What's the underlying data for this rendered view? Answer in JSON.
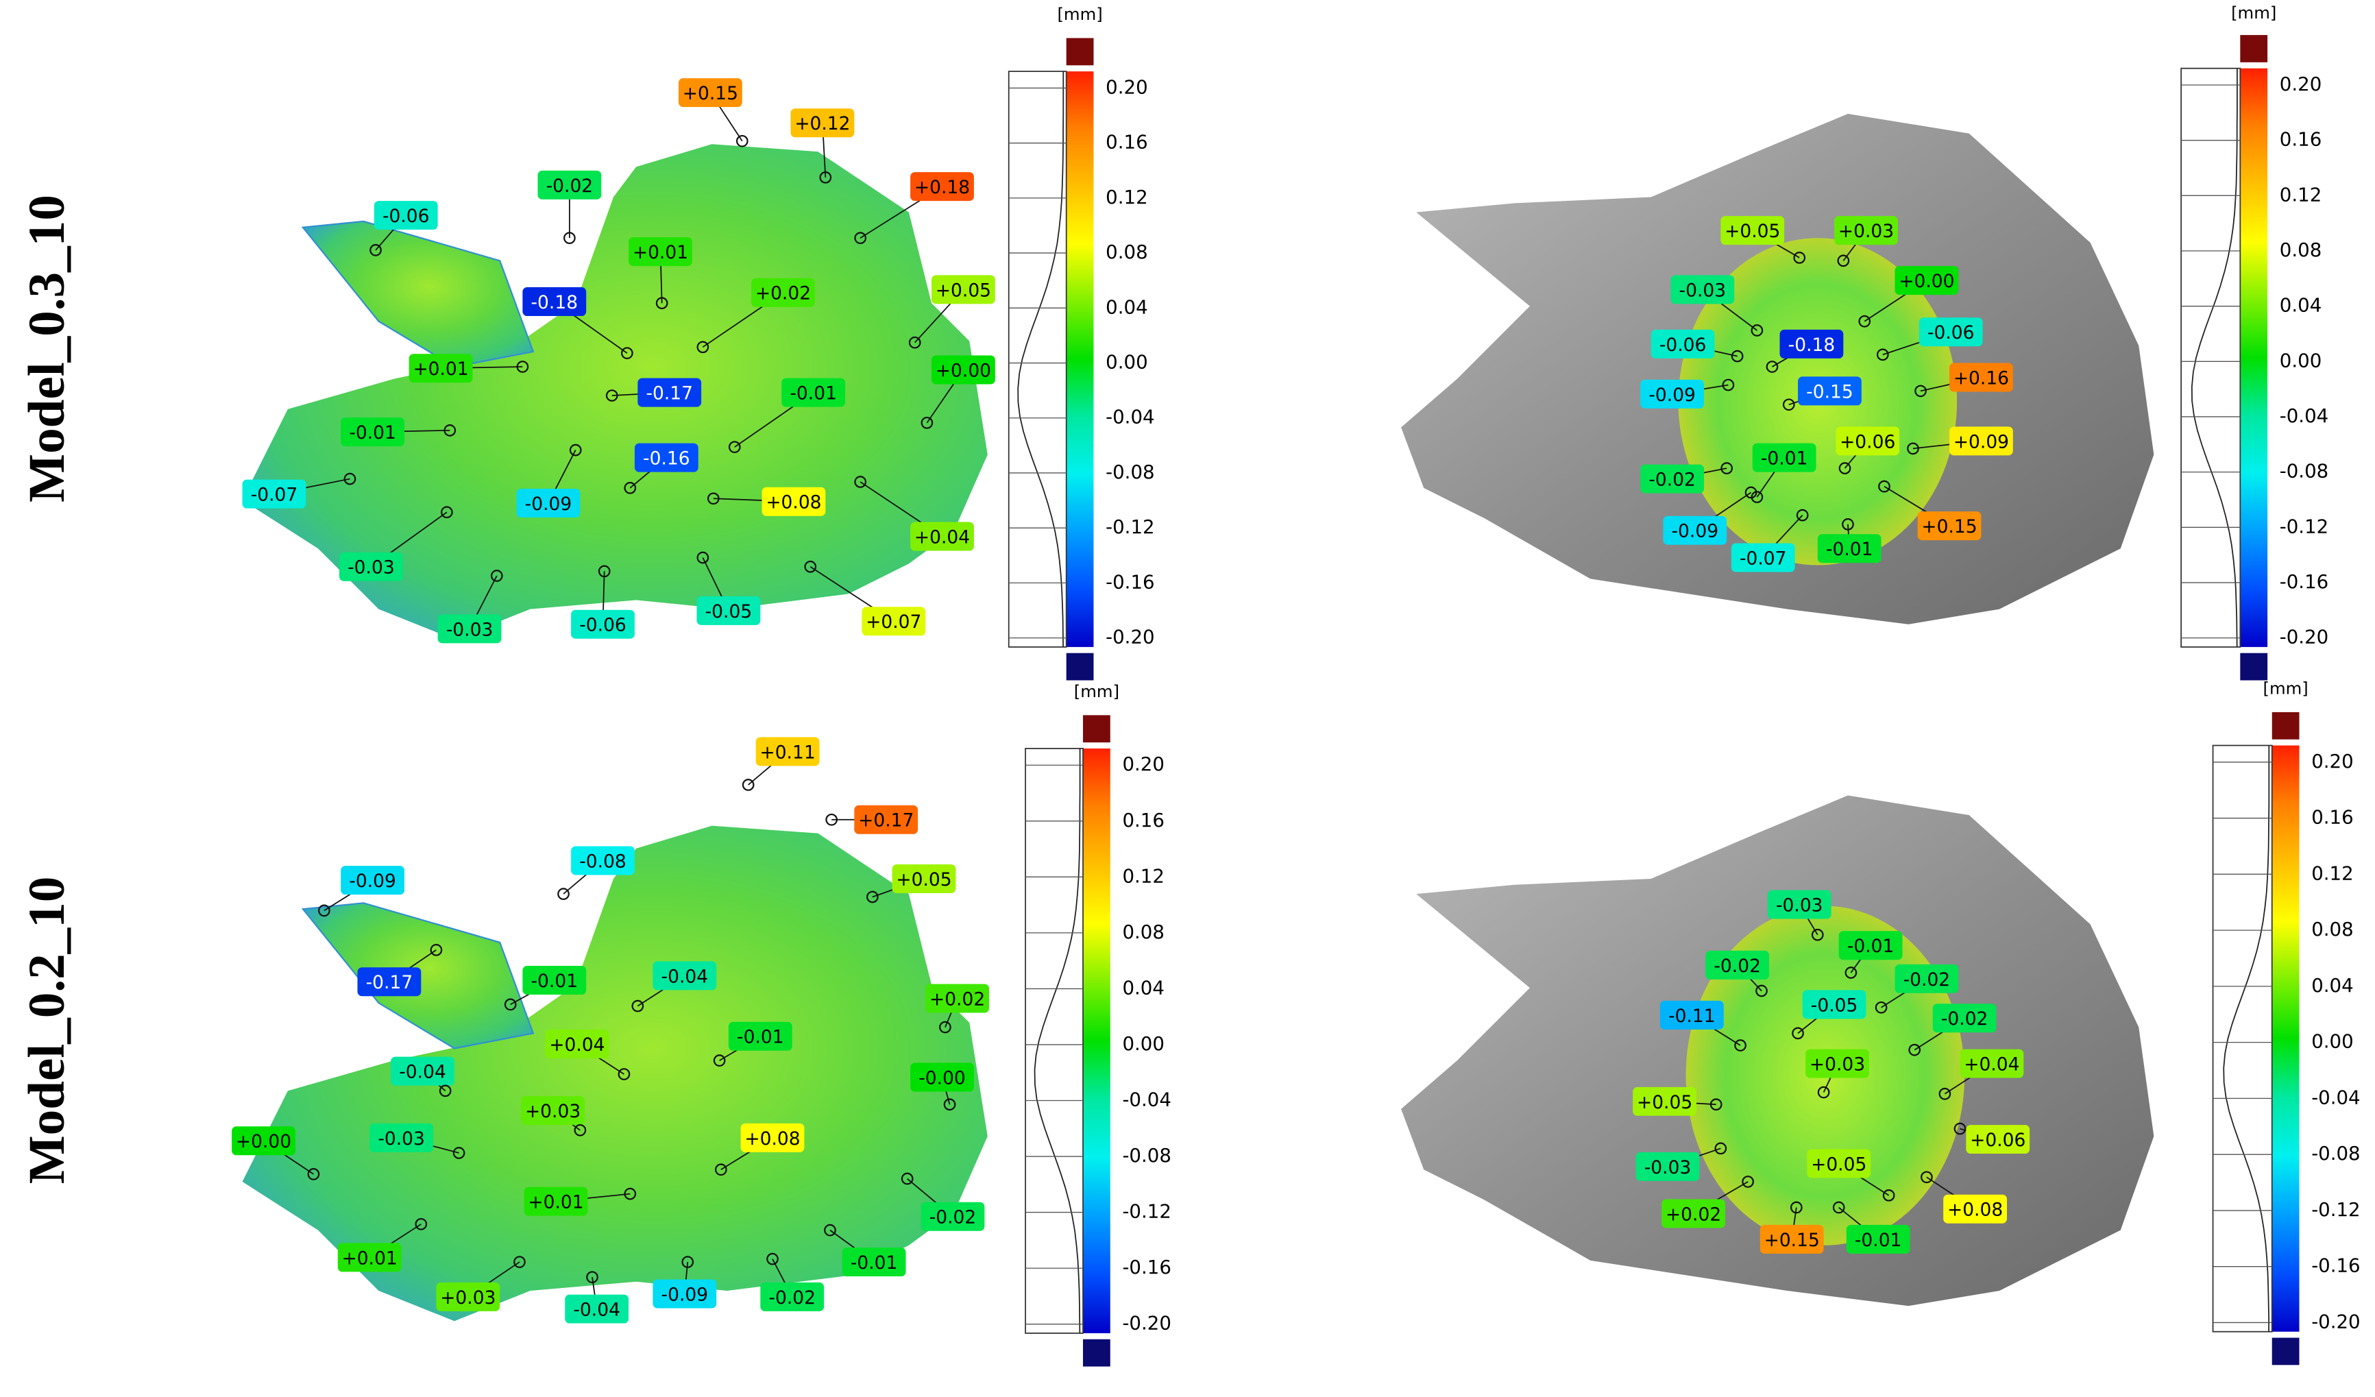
{
  "figure": {
    "rows": [
      {
        "label": "Model_0.3_10",
        "panels": [
          {
            "scale": {
              "unit": "[mm]",
              "ticks": [
                "0.20",
                "0.16",
                "0.12",
                "0.08",
                "0.04",
                "0.00",
                "-0.04",
                "-0.08",
                "-0.12",
                "-0.16",
                "-0.20"
              ]
            },
            "annotations": [
              "+0.15",
              "+0.12",
              "+0.18",
              "-0.06",
              "-0.02",
              "+0.01",
              "-0.18",
              "+0.02",
              "+0.05",
              "+0.01",
              "+0.00",
              "-0.17",
              "-0.01",
              "-0.01",
              "-0.16",
              "-0.07",
              "-0.09",
              "+0.08",
              "+0.04",
              "-0.03",
              "-0.06",
              "-0.05",
              "+0.07",
              "-0.03"
            ]
          },
          {
            "scale": {
              "unit": "[mm]",
              "ticks": [
                "0.20",
                "0.16",
                "0.12",
                "0.08",
                "0.04",
                "0.00",
                "-0.04",
                "-0.08",
                "-0.12",
                "-0.16",
                "-0.20"
              ]
            },
            "annotations": [
              "+0.05",
              "+0.03",
              "-0.03",
              "+0.00",
              "-0.06",
              "-0.18",
              "-0.06",
              "-0.09",
              "-0.15",
              "+0.16",
              "+0.06",
              "+0.09",
              "-0.01",
              "-0.02",
              "+0.15",
              "-0.09",
              "-0.07",
              "-0.01"
            ]
          }
        ]
      },
      {
        "label": "Model_0.2_10",
        "panels": [
          {
            "scale": {
              "unit": "[mm]",
              "ticks": [
                "0.20",
                "0.16",
                "0.12",
                "0.08",
                "0.04",
                "0.00",
                "-0.04",
                "-0.08",
                "-0.12",
                "-0.16",
                "-0.20"
              ]
            },
            "annotations": [
              "+0.11",
              "+0.17",
              "-0.09",
              "-0.08",
              "+0.05",
              "-0.17",
              "-0.01",
              "-0.04",
              "+0.02",
              "+0.04",
              "-0.01",
              "-0.04",
              "-0.00",
              "+0.03",
              "+0.08",
              "-0.03",
              "+0.00",
              "+0.01",
              "-0.02",
              "+0.01",
              "-0.01",
              "+0.03",
              "-0.04",
              "-0.09",
              "-0.02"
            ]
          },
          {
            "scale": {
              "unit": "[mm]",
              "ticks": [
                "0.20",
                "0.16",
                "0.12",
                "0.08",
                "0.04",
                "0.00",
                "-0.04",
                "-0.08",
                "-0.12",
                "-0.16",
                "-0.20"
              ]
            },
            "annotations": [
              "-0.03",
              "-0.01",
              "-0.02",
              "-0.02",
              "-0.11",
              "-0.05",
              "-0.02",
              "+0.04",
              "+0.03",
              "+0.05",
              "+0.06",
              "-0.03",
              "+0.05",
              "+0.08",
              "+0.02",
              "+0.15",
              "-0.01"
            ]
          }
        ]
      }
    ]
  }
}
